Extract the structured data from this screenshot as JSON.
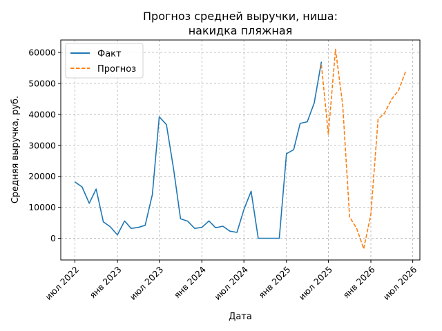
{
  "chart_data": {
    "type": "line",
    "title_line1": "Прогноз средней выручки, ниша:",
    "title_line2": "накидка пляжная",
    "xlabel": "Дата",
    "ylabel": "Средняя выручка, руб.",
    "grid": true,
    "legend_placement": "top-left",
    "xlim": [
      "2022-05-01",
      "2026-08-01"
    ],
    "ylim": [
      -7000,
      64000
    ],
    "y_ticks": [
      0,
      10000,
      20000,
      30000,
      40000,
      50000,
      60000
    ],
    "x_ticks": [
      {
        "date": "2022-07-01",
        "label": "июл 2022"
      },
      {
        "date": "2023-01-01",
        "label": "янв 2023"
      },
      {
        "date": "2023-07-01",
        "label": "июл 2023"
      },
      {
        "date": "2024-01-01",
        "label": "янв 2024"
      },
      {
        "date": "2024-07-01",
        "label": "июл 2024"
      },
      {
        "date": "2025-01-01",
        "label": "янв 2025"
      },
      {
        "date": "2025-07-01",
        "label": "июл 2025"
      },
      {
        "date": "2026-01-01",
        "label": "янв 2026"
      },
      {
        "date": "2026-07-01",
        "label": "июл 2026"
      }
    ],
    "series": [
      {
        "name": "Факт",
        "color": "#1f77b4",
        "style": "solid",
        "points": [
          {
            "x": "2022-07-01",
            "y": 18200
          },
          {
            "x": "2022-08-01",
            "y": 16600
          },
          {
            "x": "2022-09-01",
            "y": 11300
          },
          {
            "x": "2022-10-01",
            "y": 15900
          },
          {
            "x": "2022-11-01",
            "y": 5300
          },
          {
            "x": "2022-12-01",
            "y": 3700
          },
          {
            "x": "2023-01-01",
            "y": 1100
          },
          {
            "x": "2023-02-01",
            "y": 5600
          },
          {
            "x": "2023-03-01",
            "y": 3200
          },
          {
            "x": "2023-04-01",
            "y": 3500
          },
          {
            "x": "2023-05-01",
            "y": 4200
          },
          {
            "x": "2023-06-01",
            "y": 14100
          },
          {
            "x": "2023-07-01",
            "y": 39200
          },
          {
            "x": "2023-08-01",
            "y": 36700
          },
          {
            "x": "2023-09-01",
            "y": 22300
          },
          {
            "x": "2023-10-01",
            "y": 6300
          },
          {
            "x": "2023-11-01",
            "y": 5500
          },
          {
            "x": "2023-12-01",
            "y": 3200
          },
          {
            "x": "2024-01-01",
            "y": 3500
          },
          {
            "x": "2024-02-01",
            "y": 5600
          },
          {
            "x": "2024-03-01",
            "y": 3400
          },
          {
            "x": "2024-04-01",
            "y": 3900
          },
          {
            "x": "2024-05-01",
            "y": 2300
          },
          {
            "x": "2024-06-01",
            "y": 1900
          },
          {
            "x": "2024-07-01",
            "y": 9300
          },
          {
            "x": "2024-08-01",
            "y": 15200
          },
          {
            "x": "2024-09-01",
            "y": 0
          },
          {
            "x": "2024-10-01",
            "y": 0
          },
          {
            "x": "2024-11-01",
            "y": 0
          },
          {
            "x": "2024-12-01",
            "y": 0
          },
          {
            "x": "2025-01-01",
            "y": 27300
          },
          {
            "x": "2025-02-01",
            "y": 28600
          },
          {
            "x": "2025-03-01",
            "y": 37100
          },
          {
            "x": "2025-04-01",
            "y": 37600
          },
          {
            "x": "2025-05-01",
            "y": 43700
          },
          {
            "x": "2025-06-01",
            "y": 57000
          }
        ]
      },
      {
        "name": "Прогноз",
        "color": "#ff7f0e",
        "style": "dashed",
        "points": [
          {
            "x": "2025-06-01",
            "y": 56000
          },
          {
            "x": "2025-07-01",
            "y": 33600
          },
          {
            "x": "2025-08-01",
            "y": 61000
          },
          {
            "x": "2025-09-01",
            "y": 43100
          },
          {
            "x": "2025-10-01",
            "y": 6900
          },
          {
            "x": "2025-11-01",
            "y": 3100
          },
          {
            "x": "2025-12-01",
            "y": -3400
          },
          {
            "x": "2026-01-01",
            "y": 7700
          },
          {
            "x": "2026-02-01",
            "y": 38400
          },
          {
            "x": "2026-03-01",
            "y": 40400
          },
          {
            "x": "2026-04-01",
            "y": 44900
          },
          {
            "x": "2026-05-01",
            "y": 47800
          },
          {
            "x": "2026-06-01",
            "y": 54000
          }
        ]
      }
    ]
  }
}
